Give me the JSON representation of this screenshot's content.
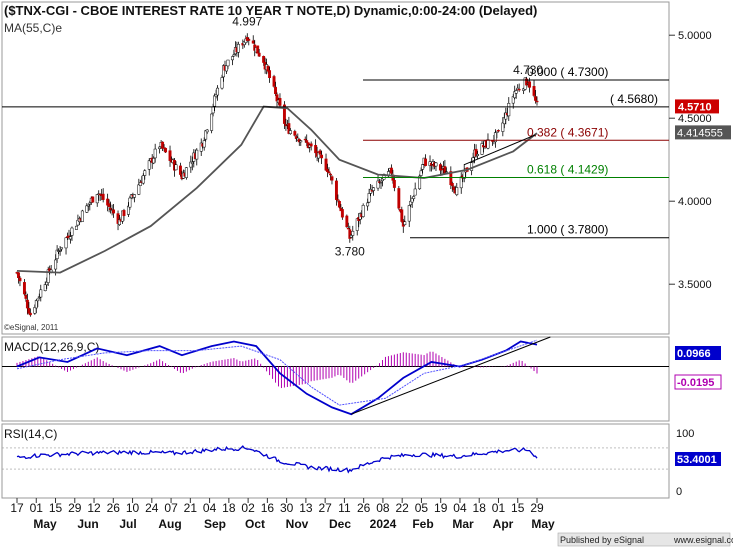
{
  "header": {
    "title": "($TNX-CGI - CBOE INTEREST RATE 10 YEAR T NOTE,D) Dynamic,0:00-24:00 (Delayed)",
    "ma_label": "MA(55,C)e",
    "watermark": "©eSignal, 2011"
  },
  "footer": {
    "published_by": "Published by eSignal",
    "url": "www.esignal.com"
  },
  "colors": {
    "price_axis_box": "#cc0000",
    "ma_axis_box": "#555555",
    "macd_line": "#0000cc",
    "signal_line": "#5050ff",
    "hist_color": "#b000b0",
    "rsi_line": "#0000cc",
    "fib_red": "#8b0000",
    "fib_green": "#008000"
  },
  "chart_data": [
    {
      "type": "candlestick",
      "panel": "price",
      "title": "($TNX-CGI - CBOE INTEREST RATE 10 YEAR T NOTE,D) Dynamic,0:00-24:00 (Delayed)",
      "ylim": [
        3.2,
        5.2
      ],
      "y_ticks": [
        "5.0000",
        "4.5000",
        "4.0000",
        "3.5000"
      ],
      "x_ticks": [
        "17",
        "01",
        "15",
        "29",
        "12",
        "26",
        "10",
        "24",
        "07",
        "21",
        "04",
        "18",
        "02",
        "16",
        "30",
        "13",
        "27",
        "11",
        "26",
        "08",
        "22",
        "05",
        "19",
        "04",
        "18",
        "01",
        "15",
        "29"
      ],
      "x_months": [
        "May",
        "Jun",
        "Jul",
        "Aug",
        "Sep",
        "Oct",
        "Nov",
        "Dec",
        "2024",
        "Feb",
        "Mar",
        "Apr",
        "May"
      ],
      "ohlc_key_points": [
        {
          "date": "2023-05-17",
          "close": 3.57
        },
        {
          "date": "2023-05-26",
          "close": 3.32
        },
        {
          "date": "2023-06-15",
          "close": 3.72
        },
        {
          "date": "2023-07-10",
          "close": 4.06
        },
        {
          "date": "2023-07-25",
          "close": 3.88
        },
        {
          "date": "2023-08-21",
          "close": 4.34
        },
        {
          "date": "2023-09-05",
          "close": 4.15
        },
        {
          "date": "2023-09-19",
          "close": 4.36
        },
        {
          "date": "2023-10-03",
          "close": 4.8
        },
        {
          "date": "2023-10-19",
          "close": 4.997
        },
        {
          "date": "2023-10-30",
          "close": 4.85
        },
        {
          "date": "2023-11-14",
          "close": 4.45
        },
        {
          "date": "2023-11-30",
          "close": 4.33
        },
        {
          "date": "2023-12-12",
          "close": 4.2
        },
        {
          "date": "2023-12-27",
          "close": 3.78
        },
        {
          "date": "2024-01-10",
          "close": 4.05
        },
        {
          "date": "2024-01-24",
          "close": 4.18
        },
        {
          "date": "2024-02-01",
          "close": 3.85
        },
        {
          "date": "2024-02-15",
          "close": 4.24
        },
        {
          "date": "2024-03-01",
          "close": 4.18
        },
        {
          "date": "2024-03-08",
          "close": 4.06
        },
        {
          "date": "2024-03-20",
          "close": 4.29
        },
        {
          "date": "2024-04-05",
          "close": 4.4
        },
        {
          "date": "2024-04-16",
          "close": 4.66
        },
        {
          "date": "2024-04-25",
          "close": 4.73
        },
        {
          "date": "2024-05-01",
          "close": 4.571
        }
      ],
      "annotations": [
        {
          "text": "4.997",
          "date": "2023-10-19",
          "y": 4.997
        },
        {
          "text": "3.780",
          "date": "2023-12-27",
          "y": 3.78
        },
        {
          "text": "4.730",
          "date": "2024-04-25",
          "y": 4.73
        }
      ],
      "horizontal_lines": [
        {
          "label": "0.000 ( 4.7300)",
          "y": 4.73,
          "color": "#000000"
        },
        {
          "label": "( 4.5680)",
          "y": 4.568,
          "color": "#000000",
          "full_width": true
        },
        {
          "label": "0.382 ( 4.3671)",
          "y": 4.3671,
          "color": "#8b0000"
        },
        {
          "label": "0.618 ( 4.1429)",
          "y": 4.1429,
          "color": "#008000"
        },
        {
          "label": "1.000 ( 3.7800)",
          "y": 3.78,
          "color": "#000000"
        }
      ],
      "moving_average": {
        "name": "MA(55,C)e",
        "points": [
          {
            "date": "2023-05-17",
            "y": 3.58
          },
          {
            "date": "2023-06-15",
            "y": 3.57
          },
          {
            "date": "2023-07-15",
            "y": 3.7
          },
          {
            "date": "2023-08-15",
            "y": 3.85
          },
          {
            "date": "2023-09-15",
            "y": 4.08
          },
          {
            "date": "2023-10-15",
            "y": 4.34
          },
          {
            "date": "2023-10-30",
            "y": 4.57
          },
          {
            "date": "2023-11-15",
            "y": 4.56
          },
          {
            "date": "2023-12-01",
            "y": 4.43
          },
          {
            "date": "2023-12-20",
            "y": 4.25
          },
          {
            "date": "2024-01-15",
            "y": 4.16
          },
          {
            "date": "2024-02-15",
            "y": 4.14
          },
          {
            "date": "2024-03-15",
            "y": 4.19
          },
          {
            "date": "2024-04-15",
            "y": 4.3
          },
          {
            "date": "2024-05-01",
            "y": 4.41
          }
        ]
      },
      "axis_boxes": [
        {
          "value": "4.5710",
          "y": 4.571,
          "style": "red"
        },
        {
          "value": "4.5000",
          "y": 4.5,
          "style": "tick"
        },
        {
          "value": "4.414555",
          "y": 4.414555,
          "style": "gray"
        }
      ],
      "trendline": {
        "from": {
          "date": "2024-03-13",
          "y": 4.22
        },
        "to": {
          "date": "2024-04-30",
          "y": 4.4
        }
      }
    },
    {
      "type": "line",
      "panel": "macd",
      "title": "MACD(12,26,9,C)",
      "ylim": [
        -0.24,
        0.13
      ],
      "series": [
        {
          "name": "MACD",
          "color": "#0000cc",
          "values": [
            {
              "date": "2023-05-17",
              "y": 0.0
            },
            {
              "date": "2023-06-01",
              "y": 0.04
            },
            {
              "date": "2023-06-20",
              "y": 0.02
            },
            {
              "date": "2023-07-10",
              "y": 0.08
            },
            {
              "date": "2023-07-30",
              "y": 0.05
            },
            {
              "date": "2023-08-21",
              "y": 0.09
            },
            {
              "date": "2023-09-05",
              "y": 0.05
            },
            {
              "date": "2023-09-25",
              "y": 0.09
            },
            {
              "date": "2023-10-10",
              "y": 0.11
            },
            {
              "date": "2023-10-25",
              "y": 0.09
            },
            {
              "date": "2023-11-10",
              "y": -0.03
            },
            {
              "date": "2023-11-28",
              "y": -0.12
            },
            {
              "date": "2023-12-15",
              "y": -0.18
            },
            {
              "date": "2023-12-28",
              "y": -0.21
            },
            {
              "date": "2024-01-15",
              "y": -0.14
            },
            {
              "date": "2024-02-01",
              "y": -0.05
            },
            {
              "date": "2024-02-20",
              "y": 0.02
            },
            {
              "date": "2024-03-10",
              "y": 0.0
            },
            {
              "date": "2024-03-25",
              "y": 0.03
            },
            {
              "date": "2024-04-10",
              "y": 0.07
            },
            {
              "date": "2024-04-20",
              "y": 0.11
            },
            {
              "date": "2024-05-01",
              "y": 0.0966
            }
          ]
        },
        {
          "name": "Signal",
          "color": "#5050ff",
          "values": [
            {
              "date": "2023-05-17",
              "y": -0.01
            },
            {
              "date": "2023-06-15",
              "y": 0.03
            },
            {
              "date": "2023-07-15",
              "y": 0.06
            },
            {
              "date": "2023-08-15",
              "y": 0.07
            },
            {
              "date": "2023-09-15",
              "y": 0.07
            },
            {
              "date": "2023-10-15",
              "y": 0.09
            },
            {
              "date": "2023-11-10",
              "y": 0.03
            },
            {
              "date": "2023-12-01",
              "y": -0.09
            },
            {
              "date": "2023-12-20",
              "y": -0.17
            },
            {
              "date": "2024-01-20",
              "y": -0.14
            },
            {
              "date": "2024-02-15",
              "y": -0.03
            },
            {
              "date": "2024-03-15",
              "y": 0.01
            },
            {
              "date": "2024-04-15",
              "y": 0.08
            },
            {
              "date": "2024-05-01",
              "y": 0.116
            }
          ]
        }
      ],
      "zero_line": 0,
      "axis_boxes": [
        {
          "value": "0.0966",
          "style": "blue"
        },
        {
          "value": "-0.0195",
          "style": "magenta"
        }
      ],
      "trendline": {
        "from": {
          "date": "2023-12-28",
          "y": -0.21
        },
        "to": {
          "date": "2024-05-10",
          "y": 0.13
        }
      }
    },
    {
      "type": "line",
      "panel": "rsi",
      "title": "RSI(14,C)",
      "ylim": [
        0,
        100
      ],
      "y_ticks": [
        "100",
        "0"
      ],
      "series": [
        {
          "name": "RSI",
          "color": "#0000cc",
          "values": [
            {
              "date": "2023-05-17",
              "y": 52
            },
            {
              "date": "2023-06-01",
              "y": 56
            },
            {
              "date": "2023-07-01",
              "y": 60
            },
            {
              "date": "2023-08-01",
              "y": 62
            },
            {
              "date": "2023-09-01",
              "y": 60
            },
            {
              "date": "2023-10-01",
              "y": 68
            },
            {
              "date": "2023-10-20",
              "y": 70
            },
            {
              "date": "2023-11-10",
              "y": 45
            },
            {
              "date": "2023-12-01",
              "y": 33
            },
            {
              "date": "2023-12-27",
              "y": 28
            },
            {
              "date": "2024-01-20",
              "y": 52
            },
            {
              "date": "2024-02-10",
              "y": 58
            },
            {
              "date": "2024-03-08",
              "y": 54
            },
            {
              "date": "2024-04-10",
              "y": 65
            },
            {
              "date": "2024-04-25",
              "y": 66
            },
            {
              "date": "2024-05-01",
              "y": 53.4001
            }
          ]
        }
      ],
      "axis_boxes": [
        {
          "value": "53.4001",
          "style": "blue"
        }
      ]
    }
  ]
}
